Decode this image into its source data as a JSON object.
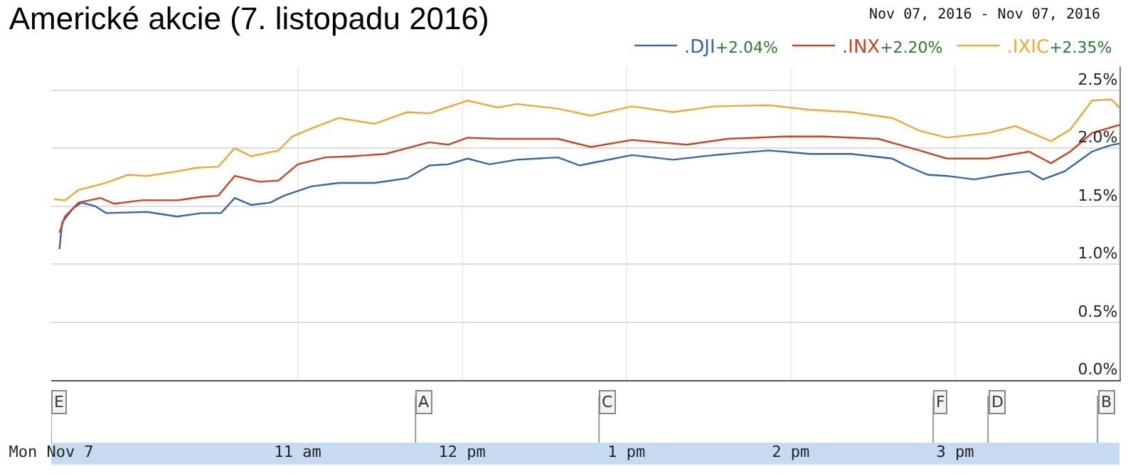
{
  "chart_data": {
    "type": "line",
    "title": "Americké akcie (7. listopadu 2016)",
    "xlim": [
      "2016-11-07T09:30",
      "2016-11-07T16:00"
    ],
    "xticks": [
      {
        "value": "2016-11-07T09:30",
        "label": "Mon Nov 7"
      },
      {
        "value": "2016-11-07T11:00",
        "label": "11 am"
      },
      {
        "value": "2016-11-07T12:00",
        "label": "12 pm"
      },
      {
        "value": "2016-11-07T13:00",
        "label": "1 pm"
      },
      {
        "value": "2016-11-07T14:00",
        "label": "2 pm"
      },
      {
        "value": "2016-11-07T15:00",
        "label": "3 pm"
      }
    ],
    "ylim": [
      0,
      2.7
    ],
    "yticks": [
      {
        "value": 0,
        "label": "0.0%"
      },
      {
        "value": 0.5,
        "label": "0.5%"
      },
      {
        "value": 1,
        "label": "1.0%"
      },
      {
        "value": 1.5,
        "label": "1.5%"
      },
      {
        "value": 2,
        "label": "2.0%"
      },
      {
        "value": 2.5,
        "label": "2.5%"
      }
    ],
    "grid": true,
    "legend": "top right",
    "marker": "none",
    "line_style": "solid",
    "annotations": [
      "Nov 07, 2016 - Nov 07, 2016",
      "+2.04%",
      "+2.20%",
      "+2.35%"
    ],
    "ref_lines": [
      {
        "axis": "x",
        "value": "2016-11-07T09:30",
        "label": "E"
      },
      {
        "axis": "x",
        "value": "2016-11-07T11:43",
        "label": "A"
      },
      {
        "axis": "x",
        "value": "2016-11-07T12:50",
        "label": "C"
      },
      {
        "axis": "x",
        "value": "2016-11-07T14:52",
        "label": "F"
      },
      {
        "axis": "x",
        "value": "2016-11-07T15:12",
        "label": "D"
      },
      {
        "axis": "x",
        "value": "2016-11-07T15:52",
        "label": "B"
      }
    ],
    "series": [
      {
        "name": ".DJI",
        "color": "#3366aa",
        "x": [
          "2016-11-07T09:33",
          "2016-11-07T09:34",
          "2016-11-07T09:38",
          "2016-11-07T09:41",
          "2016-11-07T09:46",
          "2016-11-07T09:50",
          "2016-11-07T10:05",
          "2016-11-07T10:16",
          "2016-11-07T10:25",
          "2016-11-07T10:32",
          "2016-11-07T10:37",
          "2016-11-07T10:43",
          "2016-11-07T10:50",
          "2016-11-07T10:55",
          "2016-11-07T11:05",
          "2016-11-07T11:15",
          "2016-11-07T11:28",
          "2016-11-07T11:40",
          "2016-11-07T11:48",
          "2016-11-07T11:55",
          "2016-11-07T12:02",
          "2016-11-07T12:10",
          "2016-11-07T12:20",
          "2016-11-07T12:35",
          "2016-11-07T12:43",
          "2016-11-07T12:47",
          "2016-11-07T13:02",
          "2016-11-07T13:17",
          "2016-11-07T13:32",
          "2016-11-07T13:52",
          "2016-11-07T14:07",
          "2016-11-07T14:22",
          "2016-11-07T14:37",
          "2016-11-07T14:42",
          "2016-11-07T14:50",
          "2016-11-07T14:57",
          "2016-11-07T15:07",
          "2016-11-07T15:17",
          "2016-11-07T15:27",
          "2016-11-07T15:32",
          "2016-11-07T15:40",
          "2016-11-07T15:50",
          "2016-11-07T15:56",
          "2016-11-07T16:00"
        ],
        "values": [
          1.13,
          1.36,
          1.48,
          1.53,
          1.5,
          1.44,
          1.45,
          1.41,
          1.44,
          1.44,
          1.57,
          1.51,
          1.53,
          1.59,
          1.67,
          1.7,
          1.7,
          1.74,
          1.85,
          1.86,
          1.91,
          1.86,
          1.9,
          1.92,
          1.85,
          1.87,
          1.94,
          1.9,
          1.94,
          1.98,
          1.95,
          1.95,
          1.91,
          1.85,
          1.77,
          1.76,
          1.73,
          1.77,
          1.8,
          1.73,
          1.8,
          1.97,
          2.02,
          2.04
        ]
      },
      {
        "name": ".INX",
        "color": "#cc4422",
        "x": [
          "2016-11-07T09:33",
          "2016-11-07T09:35",
          "2016-11-07T09:40",
          "2016-11-07T09:48",
          "2016-11-07T09:53",
          "2016-11-07T10:03",
          "2016-11-07T10:16",
          "2016-11-07T10:25",
          "2016-11-07T10:31",
          "2016-11-07T10:37",
          "2016-11-07T10:46",
          "2016-11-07T10:53",
          "2016-11-07T11:00",
          "2016-11-07T11:10",
          "2016-11-07T11:20",
          "2016-11-07T11:32",
          "2016-11-07T11:48",
          "2016-11-07T11:55",
          "2016-11-07T12:02",
          "2016-11-07T12:13",
          "2016-11-07T12:23",
          "2016-11-07T12:35",
          "2016-11-07T12:47",
          "2016-11-07T13:02",
          "2016-11-07T13:22",
          "2016-11-07T13:37",
          "2016-11-07T13:58",
          "2016-11-07T14:12",
          "2016-11-07T14:32",
          "2016-11-07T14:47",
          "2016-11-07T14:57",
          "2016-11-07T15:12",
          "2016-11-07T15:27",
          "2016-11-07T15:35",
          "2016-11-07T15:42",
          "2016-11-07T15:50",
          "2016-11-07T16:00"
        ],
        "values": [
          1.27,
          1.41,
          1.53,
          1.57,
          1.52,
          1.55,
          1.55,
          1.58,
          1.59,
          1.76,
          1.71,
          1.72,
          1.86,
          1.92,
          1.93,
          1.95,
          2.05,
          2.03,
          2.09,
          2.08,
          2.08,
          2.08,
          2.01,
          2.07,
          2.03,
          2.08,
          2.1,
          2.1,
          2.08,
          1.98,
          1.91,
          1.91,
          1.97,
          1.87,
          1.97,
          2.13,
          2.2
        ]
      },
      {
        "name": ".IXIC",
        "color": "#eeaa33",
        "x": [
          "2016-11-07T09:31",
          "2016-11-07T09:35",
          "2016-11-07T09:40",
          "2016-11-07T09:50",
          "2016-11-07T09:58",
          "2016-11-07T10:05",
          "2016-11-07T10:16",
          "2016-11-07T10:23",
          "2016-11-07T10:31",
          "2016-11-07T10:37",
          "2016-11-07T10:43",
          "2016-11-07T10:53",
          "2016-11-07T10:58",
          "2016-11-07T11:05",
          "2016-11-07T11:15",
          "2016-11-07T11:28",
          "2016-11-07T11:40",
          "2016-11-07T11:48",
          "2016-11-07T12:02",
          "2016-11-07T12:13",
          "2016-11-07T12:20",
          "2016-11-07T12:35",
          "2016-11-07T12:47",
          "2016-11-07T13:02",
          "2016-11-07T13:17",
          "2016-11-07T13:32",
          "2016-11-07T13:52",
          "2016-11-07T14:07",
          "2016-11-07T14:22",
          "2016-11-07T14:37",
          "2016-11-07T14:47",
          "2016-11-07T14:57",
          "2016-11-07T15:12",
          "2016-11-07T15:22",
          "2016-11-07T15:35",
          "2016-11-07T15:42",
          "2016-11-07T15:50",
          "2016-11-07T15:57",
          "2016-11-07T16:00"
        ],
        "values": [
          1.56,
          1.55,
          1.64,
          1.7,
          1.77,
          1.76,
          1.8,
          1.83,
          1.84,
          2.0,
          1.93,
          1.98,
          2.1,
          2.17,
          2.26,
          2.21,
          2.31,
          2.3,
          2.41,
          2.35,
          2.38,
          2.34,
          2.28,
          2.36,
          2.31,
          2.36,
          2.37,
          2.33,
          2.31,
          2.26,
          2.15,
          2.09,
          2.13,
          2.19,
          2.06,
          2.16,
          2.41,
          2.42,
          2.35
        ]
      }
    ]
  }
}
